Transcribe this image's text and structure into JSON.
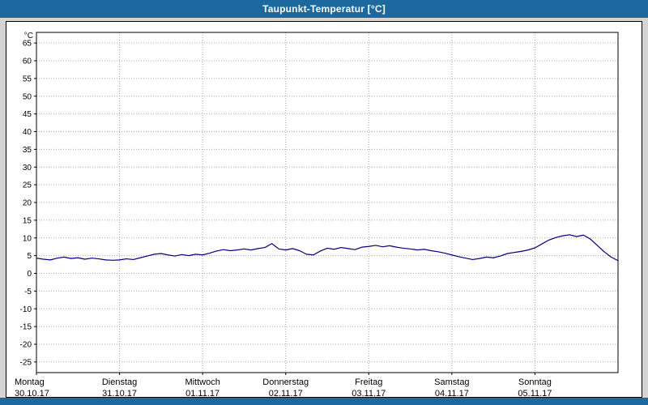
{
  "title_bar": {
    "title": "Taupunkt-Temperatur [°C]",
    "background": "#1b699f",
    "text_color": "#ffffff"
  },
  "chart_data": {
    "type": "line",
    "title": "Taupunkt-Temperatur [°C]",
    "ylabel": "°C",
    "xlabel": "",
    "ylim": [
      -28,
      68
    ],
    "y_ticks": [
      65,
      60,
      55,
      50,
      45,
      40,
      35,
      30,
      25,
      20,
      15,
      10,
      5,
      0,
      -5,
      -10,
      -15,
      -20,
      -25
    ],
    "grid": true,
    "legend_position": "none",
    "x_days": [
      {
        "label": "Montag",
        "date": "30.10.17"
      },
      {
        "label": "Dienstag",
        "date": "31.10.17"
      },
      {
        "label": "Mittwoch",
        "date": "01.11.17"
      },
      {
        "label": "Donnerstag",
        "date": "02.11.17"
      },
      {
        "label": "Freitag",
        "date": "03.11.17"
      },
      {
        "label": "Samstag",
        "date": "04.11.17"
      },
      {
        "label": "Sonntag",
        "date": "05.11.17"
      }
    ],
    "points_per_day": 12,
    "series": [
      {
        "name": "Taupunkt-Temperatur",
        "color": "#000080",
        "values": [
          4.3,
          4.0,
          3.8,
          4.3,
          4.6,
          4.2,
          4.4,
          4.0,
          4.3,
          4.1,
          3.8,
          3.7,
          3.8,
          4.1,
          3.9,
          4.4,
          4.9,
          5.4,
          5.6,
          5.2,
          4.9,
          5.3,
          5.0,
          5.4,
          5.2,
          5.7,
          6.3,
          6.7,
          6.4,
          6.6,
          6.9,
          6.6,
          7.0,
          7.3,
          8.4,
          6.9,
          6.6,
          7.0,
          6.4,
          5.4,
          5.2,
          6.3,
          7.1,
          6.8,
          7.3,
          7.0,
          6.7,
          7.4,
          7.6,
          7.9,
          7.5,
          7.8,
          7.4,
          7.1,
          6.9,
          6.6,
          6.8,
          6.4,
          6.1,
          5.7,
          5.2,
          4.7,
          4.3,
          3.9,
          4.2,
          4.6,
          4.4,
          4.9,
          5.6,
          5.9,
          6.2,
          6.6,
          7.2,
          8.3,
          9.4,
          10.1,
          10.6,
          10.9,
          10.4,
          10.8,
          9.7,
          7.9,
          6.1,
          4.6,
          3.6
        ]
      }
    ]
  }
}
